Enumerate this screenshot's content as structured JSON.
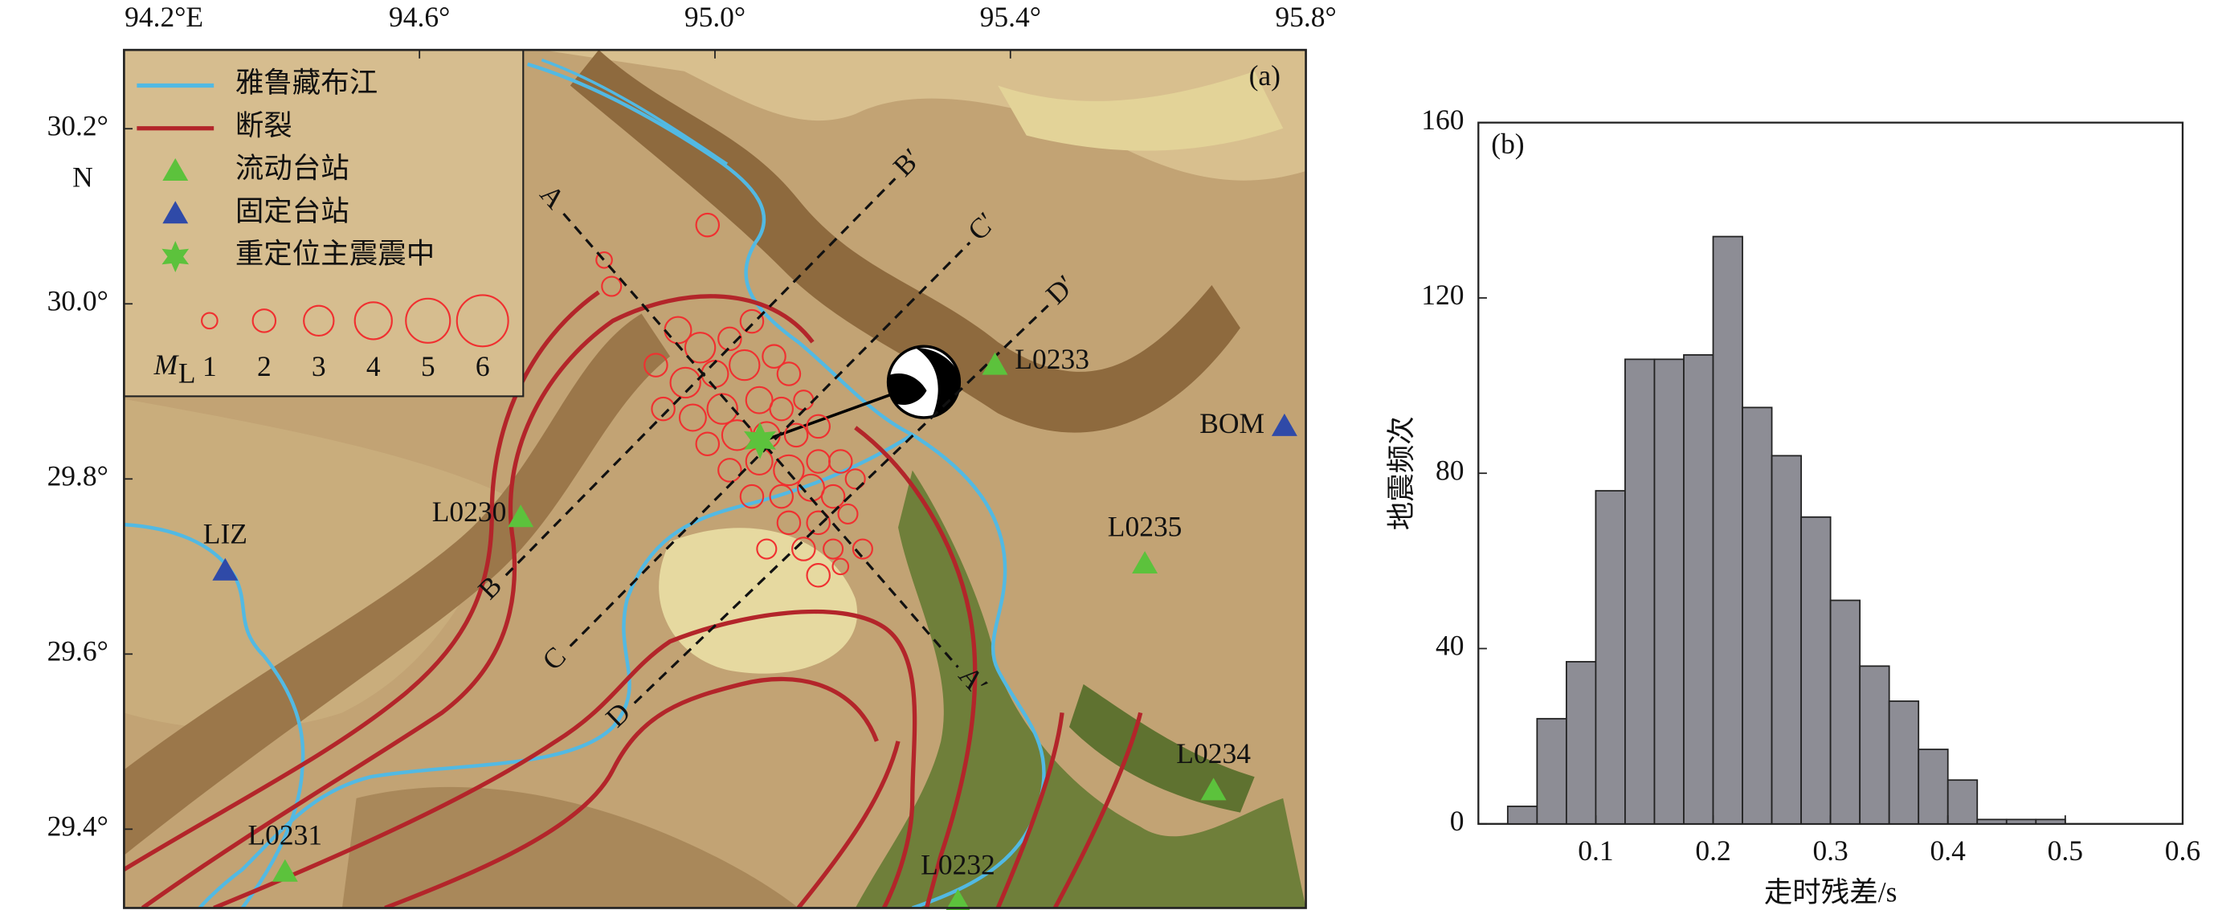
{
  "chart_data": [
    {
      "type": "map",
      "panel_label": "(a)",
      "xlim": [
        94.2,
        95.8
      ],
      "ylim": [
        29.31,
        30.29
      ],
      "xticks": [
        {
          "value": 94.2,
          "label": "94.2°E"
        },
        {
          "value": 94.6,
          "label": "94.6°"
        },
        {
          "value": 95.0,
          "label": "95.0°"
        },
        {
          "value": 95.4,
          "label": "95.4°"
        },
        {
          "value": 95.8,
          "label": "95.8°"
        }
      ],
      "yticks": [
        {
          "value": 30.2,
          "label": "30.2°"
        },
        {
          "value": 30.0,
          "label": "30.0°"
        },
        {
          "value": 29.8,
          "label": "29.8°"
        },
        {
          "value": 29.6,
          "label": "29.6°"
        },
        {
          "value": 29.4,
          "label": "29.4°"
        }
      ],
      "lat_axis_label": "N",
      "legend_lines": [
        {
          "name": "雅鲁藏布江",
          "color": "#52b9e3"
        },
        {
          "name": "断裂",
          "color": "#b3252a"
        }
      ],
      "station_series": [
        {
          "name": "流动台站",
          "color": "#5cc23c",
          "stations": [
            "L0233",
            "L0230",
            "L0235",
            "L0234",
            "L0231",
            "L0232"
          ],
          "lon": [
            95.379,
            94.737,
            95.582,
            95.675,
            94.418,
            95.329
          ],
          "lat": [
            29.93,
            29.756,
            29.703,
            29.444,
            29.351,
            29.317
          ]
        },
        {
          "name": "固定台站",
          "color": "#2f4aa8",
          "stations": [
            "LIZ",
            "BOM"
          ],
          "lon": [
            94.337,
            95.771
          ],
          "lat": [
            29.695,
            29.86
          ]
        }
      ],
      "epicenter": {
        "name": "重定位主震震中",
        "color": "#5cc23c",
        "lon": 95.061,
        "lat": 29.844
      },
      "events": {
        "color": "#f03030",
        "lon": [
          94.99,
          94.85,
          94.86,
          94.95,
          94.98,
          95.02,
          95.05,
          94.92,
          94.96,
          95.0,
          95.04,
          95.08,
          95.1,
          94.93,
          94.97,
          95.01,
          95.06,
          95.09,
          95.12,
          94.99,
          95.03,
          95.07,
          95.11,
          95.14,
          95.02,
          95.06,
          95.1,
          95.14,
          95.17,
          95.05,
          95.09,
          95.13,
          95.16,
          95.19,
          95.1,
          95.14,
          95.18,
          95.12,
          95.16,
          95.2,
          95.07,
          95.14,
          95.17
        ],
        "lat": [
          30.09,
          30.05,
          30.02,
          29.97,
          29.95,
          29.96,
          29.98,
          29.93,
          29.91,
          29.92,
          29.93,
          29.94,
          29.92,
          29.88,
          29.87,
          29.88,
          29.89,
          29.88,
          29.89,
          29.84,
          29.85,
          29.85,
          29.85,
          29.86,
          29.81,
          29.82,
          29.81,
          29.82,
          29.82,
          29.78,
          29.78,
          29.79,
          29.78,
          29.8,
          29.75,
          29.75,
          29.76,
          29.72,
          29.72,
          29.72,
          29.72,
          29.69,
          29.7
        ],
        "magnitude": [
          2,
          1,
          1.5,
          2.5,
          3,
          2,
          2,
          2,
          3,
          2.5,
          3,
          2,
          2,
          2,
          2.5,
          3,
          2.5,
          2,
          1.5,
          2,
          3,
          2.5,
          2,
          2,
          2,
          2.5,
          3,
          2,
          2,
          2,
          2,
          2.5,
          2,
          1.5,
          2,
          2,
          1.5,
          2,
          1.5,
          1.5,
          1.5,
          2,
          1
        ]
      },
      "magnitude_label": {
        "symbol": "M",
        "subscript": "L"
      },
      "size_legend": [
        1,
        2,
        3,
        4,
        5,
        6
      ],
      "profiles": [
        {
          "start_label": "A",
          "end_label": "A′",
          "start": [
            94.795,
            30.103
          ],
          "end": [
            95.329,
            29.585
          ]
        },
        {
          "start_label": "B",
          "end_label": "B′",
          "start": [
            94.717,
            29.69
          ],
          "end": [
            95.244,
            30.143
          ]
        },
        {
          "start_label": "C",
          "end_label": "C′",
          "start": [
            94.804,
            29.609
          ],
          "end": [
            95.345,
            30.07
          ]
        },
        {
          "start_label": "D",
          "end_label": "D′",
          "start": [
            94.891,
            29.544
          ],
          "end": [
            95.451,
            29.998
          ]
        }
      ]
    },
    {
      "type": "histogram",
      "panel_label": "(b)",
      "x_label": "走时残差/s",
      "y_label": "地震频次",
      "color": "#8d8d95",
      "bins": [
        0.025,
        0.05,
        0.075,
        0.1,
        0.125,
        0.15,
        0.175,
        0.2,
        0.225,
        0.25,
        0.275,
        0.3,
        0.325,
        0.35,
        0.375,
        0.4,
        0.425,
        0.45,
        0.475,
        0.5
      ],
      "counts": [
        4,
        24,
        37,
        76,
        106,
        106,
        107,
        134,
        95,
        84,
        70,
        51,
        36,
        28,
        17,
        10,
        1,
        1,
        1
      ],
      "xlim": [
        0,
        0.6
      ],
      "ylim": [
        0,
        160
      ],
      "xticks": [
        0.1,
        0.2,
        0.3,
        0.4,
        0.5,
        0.6
      ],
      "yticks": [
        0,
        40,
        80,
        120,
        160
      ]
    }
  ]
}
